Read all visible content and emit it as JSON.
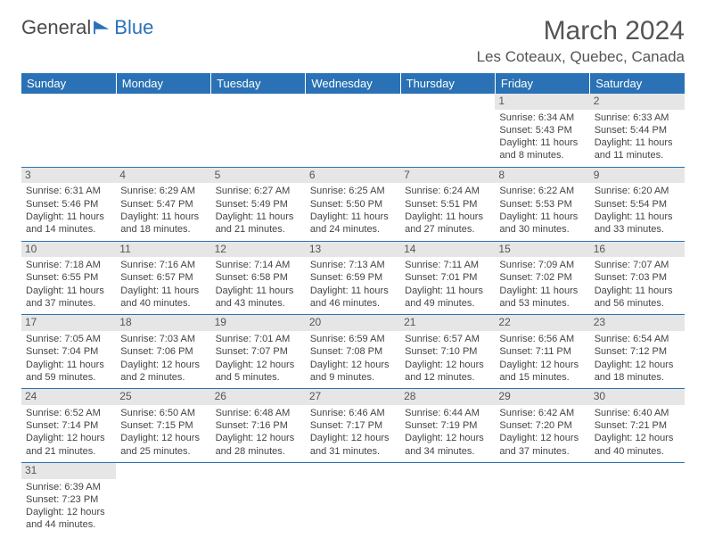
{
  "logo": {
    "text1": "General",
    "text2": "Blue"
  },
  "title": "March 2024",
  "location": "Les Coteaux, Quebec, Canada",
  "colors": {
    "header_bg": "#2a72b5",
    "header_text": "#ffffff",
    "daynum_bg": "#e6e6e6",
    "border": "#2a72b5",
    "body_text": "#444444"
  },
  "weekdays": [
    "Sunday",
    "Monday",
    "Tuesday",
    "Wednesday",
    "Thursday",
    "Friday",
    "Saturday"
  ],
  "first_weekday_index": 5,
  "days": [
    {
      "n": 1,
      "sunrise": "6:34 AM",
      "sunset": "5:43 PM",
      "daylight": "11 hours and 8 minutes."
    },
    {
      "n": 2,
      "sunrise": "6:33 AM",
      "sunset": "5:44 PM",
      "daylight": "11 hours and 11 minutes."
    },
    {
      "n": 3,
      "sunrise": "6:31 AM",
      "sunset": "5:46 PM",
      "daylight": "11 hours and 14 minutes."
    },
    {
      "n": 4,
      "sunrise": "6:29 AM",
      "sunset": "5:47 PM",
      "daylight": "11 hours and 18 minutes."
    },
    {
      "n": 5,
      "sunrise": "6:27 AM",
      "sunset": "5:49 PM",
      "daylight": "11 hours and 21 minutes."
    },
    {
      "n": 6,
      "sunrise": "6:25 AM",
      "sunset": "5:50 PM",
      "daylight": "11 hours and 24 minutes."
    },
    {
      "n": 7,
      "sunrise": "6:24 AM",
      "sunset": "5:51 PM",
      "daylight": "11 hours and 27 minutes."
    },
    {
      "n": 8,
      "sunrise": "6:22 AM",
      "sunset": "5:53 PM",
      "daylight": "11 hours and 30 minutes."
    },
    {
      "n": 9,
      "sunrise": "6:20 AM",
      "sunset": "5:54 PM",
      "daylight": "11 hours and 33 minutes."
    },
    {
      "n": 10,
      "sunrise": "7:18 AM",
      "sunset": "6:55 PM",
      "daylight": "11 hours and 37 minutes."
    },
    {
      "n": 11,
      "sunrise": "7:16 AM",
      "sunset": "6:57 PM",
      "daylight": "11 hours and 40 minutes."
    },
    {
      "n": 12,
      "sunrise": "7:14 AM",
      "sunset": "6:58 PM",
      "daylight": "11 hours and 43 minutes."
    },
    {
      "n": 13,
      "sunrise": "7:13 AM",
      "sunset": "6:59 PM",
      "daylight": "11 hours and 46 minutes."
    },
    {
      "n": 14,
      "sunrise": "7:11 AM",
      "sunset": "7:01 PM",
      "daylight": "11 hours and 49 minutes."
    },
    {
      "n": 15,
      "sunrise": "7:09 AM",
      "sunset": "7:02 PM",
      "daylight": "11 hours and 53 minutes."
    },
    {
      "n": 16,
      "sunrise": "7:07 AM",
      "sunset": "7:03 PM",
      "daylight": "11 hours and 56 minutes."
    },
    {
      "n": 17,
      "sunrise": "7:05 AM",
      "sunset": "7:04 PM",
      "daylight": "11 hours and 59 minutes."
    },
    {
      "n": 18,
      "sunrise": "7:03 AM",
      "sunset": "7:06 PM",
      "daylight": "12 hours and 2 minutes."
    },
    {
      "n": 19,
      "sunrise": "7:01 AM",
      "sunset": "7:07 PM",
      "daylight": "12 hours and 5 minutes."
    },
    {
      "n": 20,
      "sunrise": "6:59 AM",
      "sunset": "7:08 PM",
      "daylight": "12 hours and 9 minutes."
    },
    {
      "n": 21,
      "sunrise": "6:57 AM",
      "sunset": "7:10 PM",
      "daylight": "12 hours and 12 minutes."
    },
    {
      "n": 22,
      "sunrise": "6:56 AM",
      "sunset": "7:11 PM",
      "daylight": "12 hours and 15 minutes."
    },
    {
      "n": 23,
      "sunrise": "6:54 AM",
      "sunset": "7:12 PM",
      "daylight": "12 hours and 18 minutes."
    },
    {
      "n": 24,
      "sunrise": "6:52 AM",
      "sunset": "7:14 PM",
      "daylight": "12 hours and 21 minutes."
    },
    {
      "n": 25,
      "sunrise": "6:50 AM",
      "sunset": "7:15 PM",
      "daylight": "12 hours and 25 minutes."
    },
    {
      "n": 26,
      "sunrise": "6:48 AM",
      "sunset": "7:16 PM",
      "daylight": "12 hours and 28 minutes."
    },
    {
      "n": 27,
      "sunrise": "6:46 AM",
      "sunset": "7:17 PM",
      "daylight": "12 hours and 31 minutes."
    },
    {
      "n": 28,
      "sunrise": "6:44 AM",
      "sunset": "7:19 PM",
      "daylight": "12 hours and 34 minutes."
    },
    {
      "n": 29,
      "sunrise": "6:42 AM",
      "sunset": "7:20 PM",
      "daylight": "12 hours and 37 minutes."
    },
    {
      "n": 30,
      "sunrise": "6:40 AM",
      "sunset": "7:21 PM",
      "daylight": "12 hours and 40 minutes."
    },
    {
      "n": 31,
      "sunrise": "6:39 AM",
      "sunset": "7:23 PM",
      "daylight": "12 hours and 44 minutes."
    }
  ],
  "labels": {
    "sunrise": "Sunrise:",
    "sunset": "Sunset:",
    "daylight": "Daylight:"
  }
}
